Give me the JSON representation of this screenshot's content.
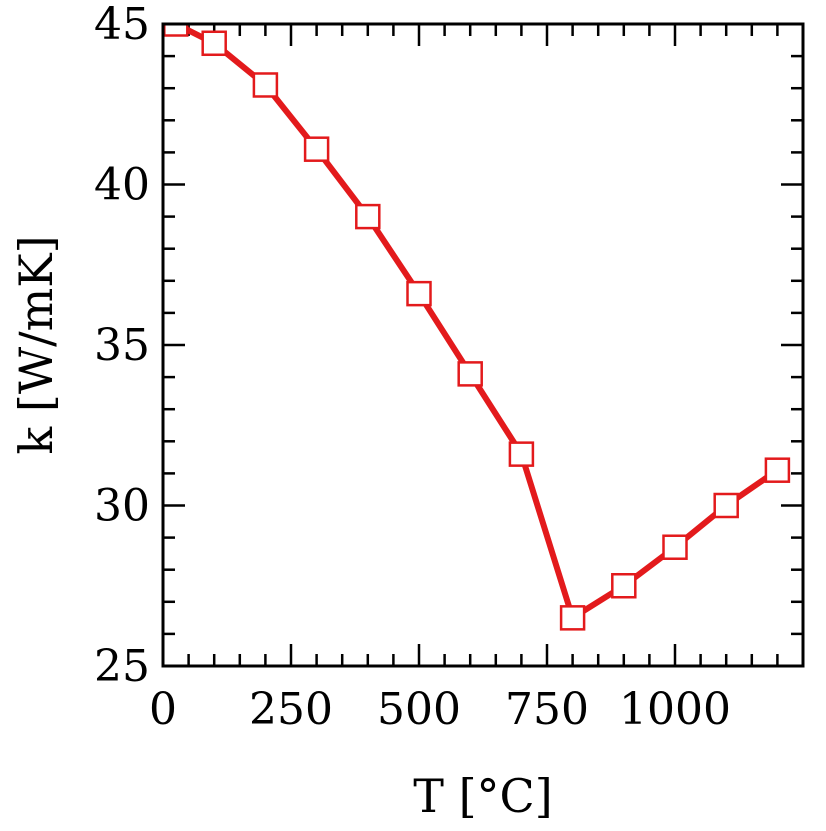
{
  "chart_data": {
    "type": "line",
    "xlabel": "T [°C]",
    "ylabel": "k [W/mK]",
    "xlim": [
      0,
      1250
    ],
    "ylim": [
      25,
      45
    ],
    "xticks": [
      0,
      250,
      500,
      750,
      1000
    ],
    "xtick_labels": [
      "0",
      "250",
      "500",
      "750",
      "1000"
    ],
    "yticks": [
      25,
      30,
      35,
      40,
      45
    ],
    "ytick_labels": [
      "25",
      "30",
      "35",
      "40",
      "45"
    ],
    "grid": false,
    "marker": "open-square",
    "color": "#e31a1c",
    "x": [
      25,
      100,
      200,
      300,
      400,
      500,
      600,
      700,
      800,
      900,
      1000,
      1100,
      1200
    ],
    "y": [
      45.0,
      44.4,
      43.1,
      41.1,
      39.0,
      36.6,
      34.1,
      31.6,
      26.5,
      27.5,
      28.7,
      30.0,
      31.1
    ]
  }
}
